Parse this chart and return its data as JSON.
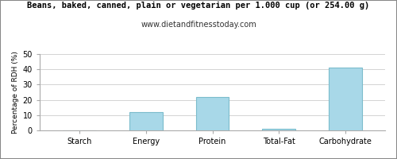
{
  "title": "Beans, baked, canned, plain or vegetarian per 1.000 cup (or 254.00 g)",
  "subtitle": "www.dietandfitnesstoday.com",
  "categories": [
    "Starch",
    "Energy",
    "Protein",
    "Total-Fat",
    "Carbohydrate"
  ],
  "values": [
    0,
    12,
    22,
    1,
    41
  ],
  "bar_color": "#a8d8e8",
  "bar_edge_color": "#7bbccc",
  "ylabel": "Percentage of RDH (%)",
  "ylim": [
    0,
    50
  ],
  "yticks": [
    0,
    10,
    20,
    30,
    40,
    50
  ],
  "background_color": "#ffffff",
  "grid_color": "#cccccc",
  "title_fontsize": 7.5,
  "subtitle_fontsize": 7.0,
  "tick_fontsize": 7.0,
  "ylabel_fontsize": 6.5,
  "title_font": "monospace",
  "subtitle_font": "sans-serif",
  "border_color": "#aaaaaa"
}
